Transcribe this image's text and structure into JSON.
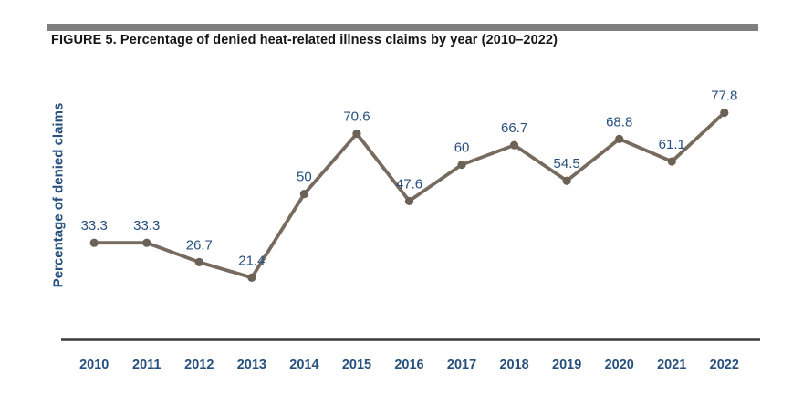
{
  "figure": {
    "title": "FIGURE 5. Percentage of denied heat-related illness claims by year (2010–2022)"
  },
  "chart_data": {
    "type": "line",
    "title": "FIGURE 5. Percentage of denied heat-related illness claims by year (2010–2022)",
    "categories": [
      "2010",
      "2011",
      "2012",
      "2013",
      "2014",
      "2015",
      "2016",
      "2017",
      "2018",
      "2019",
      "2020",
      "2021",
      "2022"
    ],
    "values": [
      33.3,
      33.3,
      26.7,
      21.4,
      50,
      70.6,
      47.6,
      60,
      66.7,
      54.5,
      68.8,
      61.1,
      77.8
    ],
    "data_labels": [
      "33.3",
      "33.3",
      "26.7",
      "21.4",
      "50",
      "70.6",
      "47.6",
      "60",
      "66.7",
      "54.5",
      "68.8",
      "61.1",
      "77.8"
    ],
    "xlabel": "",
    "ylabel": "Percentage of denied claims",
    "ylim": [
      0,
      100
    ],
    "grid": false,
    "legend": null,
    "marker": "circle",
    "data_labels_position": "above"
  },
  "colors": {
    "line": "#776b5f",
    "marker": "#6c6156",
    "label_text": "#27507e",
    "axis_line": "#3a3a3a",
    "top_rule": "#7f7f7f",
    "title_text": "#161616"
  }
}
